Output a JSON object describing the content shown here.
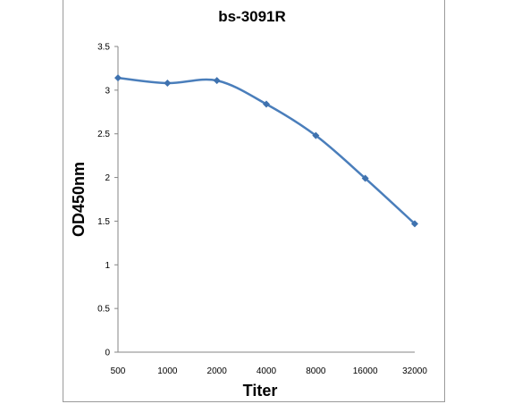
{
  "chart_data": {
    "type": "line",
    "title": "bs-3091R",
    "xlabel": "Titer",
    "ylabel": "OD450nm",
    "categories": [
      "500",
      "1000",
      "2000",
      "4000",
      "8000",
      "16000",
      "32000"
    ],
    "series": [
      {
        "values": [
          3.14,
          3.08,
          3.11,
          2.84,
          2.48,
          1.99,
          1.47
        ]
      }
    ],
    "ylim": [
      0,
      3.5
    ],
    "yticks": [
      "0",
      "0.5",
      "1",
      "1.5",
      "2",
      "2.5",
      "3",
      "3.5"
    ],
    "grid": false,
    "legend": "none",
    "colors": {
      "line": "#4a7ebb",
      "marker": "#3f72af",
      "axis": "#868686"
    }
  }
}
